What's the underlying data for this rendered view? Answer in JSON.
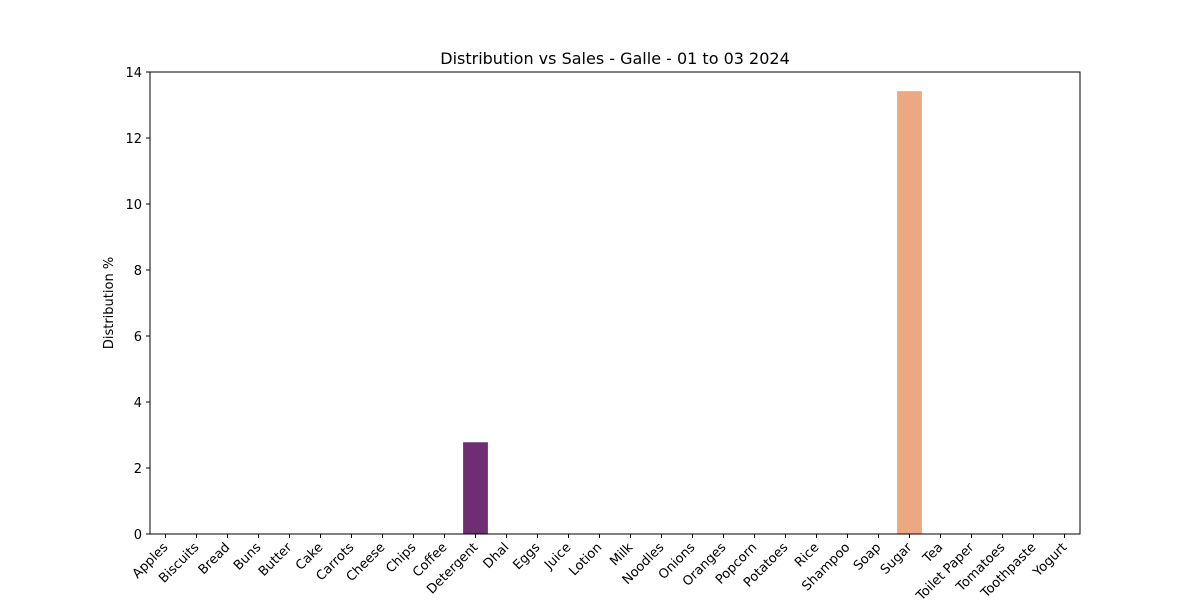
{
  "chart_data": {
    "type": "bar",
    "title": "Distribution vs Sales - Galle - 01 to 03 2024",
    "xlabel": "",
    "ylabel": "Distribution %",
    "ylim": [
      0,
      14
    ],
    "yticks": [
      0,
      2,
      4,
      6,
      8,
      10,
      12,
      14
    ],
    "grid": false,
    "categories": [
      "Apples",
      "Biscuits",
      "Bread",
      "Buns",
      "Butter",
      "Cake",
      "Carrots",
      "Cheese",
      "Chips",
      "Coffee",
      "Detergent",
      "Dhal",
      "Eggs",
      "Juice",
      "Lotion",
      "Milk",
      "Noodles",
      "Onions",
      "Oranges",
      "Popcorn",
      "Potatoes",
      "Rice",
      "Shampoo",
      "Soap",
      "Sugar",
      "Tea",
      "Toilet Paper",
      "Tomatoes",
      "Toothpaste",
      "Yogurt"
    ],
    "values": [
      0,
      0,
      0,
      0,
      0,
      0,
      0,
      0,
      0,
      0,
      2.78,
      0,
      0,
      0,
      0,
      0,
      0,
      0,
      0,
      0,
      0,
      0,
      0,
      0,
      13.42,
      0,
      0,
      0,
      0,
      0
    ],
    "bar_colors": {
      "Detergent": "#6f2d74",
      "Sugar": "#eda882"
    }
  }
}
